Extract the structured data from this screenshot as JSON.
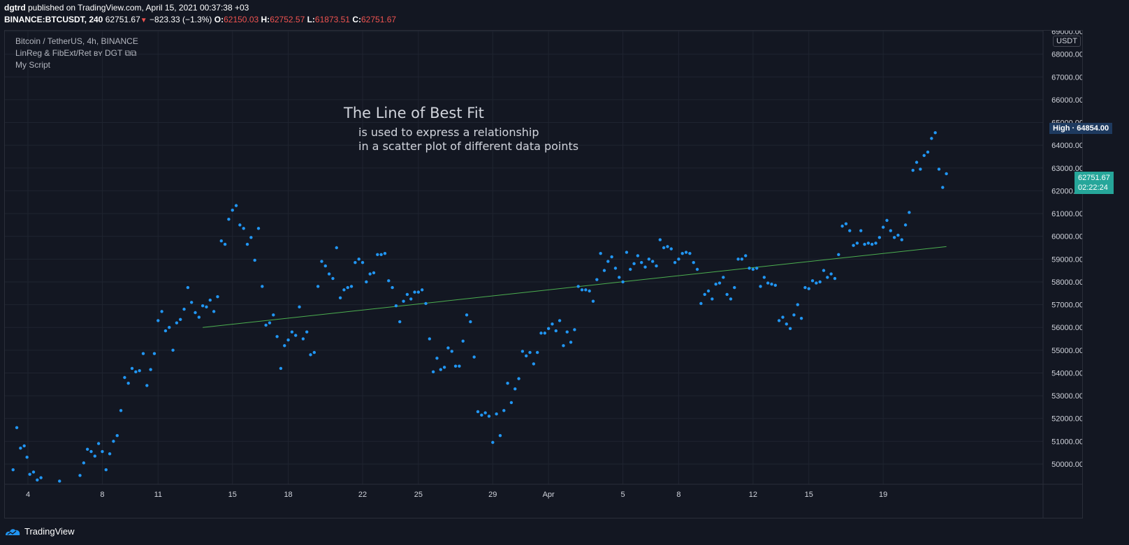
{
  "header": {
    "user": "dgtrd",
    "published": "published on TradingView.com, April 15, 2021 00:37:38 +03",
    "symbol": "BINANCE:BTCUSDT, 240",
    "last": "62751.67",
    "change": "−823.33 (−1.3%)",
    "o_label": "O:",
    "o_value": "62150.03",
    "h_label": "H:",
    "h_value": "62752.57",
    "l_label": "L:",
    "l_value": "61873.51",
    "c_label": "C:",
    "c_value": "62751.67"
  },
  "legend": {
    "title": "Bitcoin / TetherUS, 4h, BINANCE",
    "indicator": "LinReg & FibExt/Ret ʙʏ DGT ⧉⧉",
    "script": "My Script"
  },
  "annotation": {
    "title": "The Line of Best Fit",
    "line1": "is used to express a relationship",
    "line2": "in a scatter plot of different data points"
  },
  "price_scale": {
    "currency": "USDT",
    "labels": [
      "69000.00",
      "68000.00",
      "67000.00",
      "66000.00",
      "65000.00",
      "64000.00",
      "63000.00",
      "62000.00",
      "61000.00",
      "60000.00",
      "59000.00",
      "58000.00",
      "57000.00",
      "56000.00",
      "55000.00",
      "54000.00",
      "53000.00",
      "52000.00",
      "51000.00",
      "50000.00"
    ],
    "high_label": "High",
    "high_value": "64854.00",
    "last_value": "62751.67",
    "countdown": "02:22:24"
  },
  "time_scale": {
    "labels": [
      "4",
      "8",
      "11",
      "15",
      "18",
      "22",
      "25",
      "29",
      "Apr",
      "5",
      "8",
      "12",
      "15",
      "19"
    ]
  },
  "footer": {
    "brand": "TradingView"
  },
  "colors": {
    "background": "#131722",
    "points": "#2196f3",
    "line": "#4caf50",
    "grid": "#1f2430",
    "last_badge": "#26a69a",
    "high_badge": "#1e3a5f",
    "down": "#ef5350"
  },
  "chart_data": {
    "type": "scatter",
    "title": "Bitcoin / TetherUS, 4h, BINANCE",
    "xlabel": "",
    "ylabel": "USDT",
    "x_unit": "day index (4 = March 4, 29 = March 29, Apr 1 = 32)",
    "ylim": [
      48600,
      69000
    ],
    "grid": true,
    "series": [
      {
        "name": "Bitcoin / TetherUS, 4h, BINANCE",
        "points": [
          [
            3.2,
            49750
          ],
          [
            3.4,
            51600
          ],
          [
            3.6,
            50700
          ],
          [
            3.8,
            50800
          ],
          [
            3.95,
            50300
          ],
          [
            4.1,
            49550
          ],
          [
            4.3,
            49650
          ],
          [
            4.5,
            49300
          ],
          [
            4.7,
            49400
          ],
          [
            5.7,
            49250
          ],
          [
            6.8,
            49500
          ],
          [
            7.0,
            50050
          ],
          [
            7.2,
            50650
          ],
          [
            7.4,
            50550
          ],
          [
            7.6,
            50350
          ],
          [
            7.8,
            50900
          ],
          [
            8.0,
            50550
          ],
          [
            8.2,
            49750
          ],
          [
            8.4,
            50450
          ],
          [
            8.6,
            51000
          ],
          [
            8.8,
            51250
          ],
          [
            9.0,
            52350
          ],
          [
            9.2,
            53800
          ],
          [
            9.4,
            53550
          ],
          [
            9.6,
            54200
          ],
          [
            9.8,
            54050
          ],
          [
            10.0,
            54100
          ],
          [
            10.2,
            54850
          ],
          [
            10.4,
            53450
          ],
          [
            10.6,
            54150
          ],
          [
            10.8,
            54850
          ],
          [
            11.0,
            56300
          ],
          [
            11.2,
            56700
          ],
          [
            11.4,
            55850
          ],
          [
            11.6,
            56000
          ],
          [
            11.8,
            55000
          ],
          [
            12.0,
            56200
          ],
          [
            12.2,
            56350
          ],
          [
            12.4,
            56800
          ],
          [
            12.6,
            57750
          ],
          [
            12.8,
            57100
          ],
          [
            13.0,
            56650
          ],
          [
            13.2,
            56450
          ],
          [
            13.4,
            56950
          ],
          [
            13.6,
            56900
          ],
          [
            13.8,
            57200
          ],
          [
            14.0,
            56700
          ],
          [
            14.2,
            57350
          ],
          [
            14.4,
            59800
          ],
          [
            14.6,
            59650
          ],
          [
            14.8,
            60750
          ],
          [
            15.0,
            61150
          ],
          [
            15.2,
            61350
          ],
          [
            15.4,
            60500
          ],
          [
            15.6,
            60350
          ],
          [
            15.8,
            59650
          ],
          [
            16.0,
            59950
          ],
          [
            16.2,
            58950
          ],
          [
            16.4,
            60350
          ],
          [
            16.6,
            57800
          ],
          [
            16.8,
            56100
          ],
          [
            17.0,
            56200
          ],
          [
            17.2,
            56550
          ],
          [
            17.4,
            55600
          ],
          [
            17.6,
            54200
          ],
          [
            17.8,
            55200
          ],
          [
            18.0,
            55450
          ],
          [
            18.2,
            55800
          ],
          [
            18.4,
            55650
          ],
          [
            18.6,
            56900
          ],
          [
            18.8,
            55500
          ],
          [
            19.0,
            55800
          ],
          [
            19.2,
            54800
          ],
          [
            19.4,
            54900
          ],
          [
            19.6,
            57800
          ],
          [
            19.8,
            58900
          ],
          [
            20.0,
            58700
          ],
          [
            20.2,
            58350
          ],
          [
            20.4,
            58150
          ],
          [
            20.6,
            59500
          ],
          [
            20.8,
            57300
          ],
          [
            21.0,
            57650
          ],
          [
            21.2,
            57750
          ],
          [
            21.4,
            57800
          ],
          [
            21.6,
            58850
          ],
          [
            21.8,
            59000
          ],
          [
            22.0,
            58850
          ],
          [
            22.2,
            58000
          ],
          [
            22.4,
            58350
          ],
          [
            22.6,
            58400
          ],
          [
            22.8,
            59200
          ],
          [
            23.0,
            59200
          ],
          [
            23.2,
            59250
          ],
          [
            23.4,
            58050
          ],
          [
            23.6,
            57750
          ],
          [
            23.8,
            56950
          ],
          [
            24.0,
            56250
          ],
          [
            24.2,
            57150
          ],
          [
            24.4,
            57450
          ],
          [
            24.6,
            57250
          ],
          [
            24.8,
            57550
          ],
          [
            25.0,
            57550
          ],
          [
            25.2,
            57650
          ],
          [
            25.4,
            57050
          ],
          [
            25.6,
            55500
          ],
          [
            25.8,
            54050
          ],
          [
            26.0,
            54650
          ],
          [
            26.2,
            54150
          ],
          [
            26.4,
            54250
          ],
          [
            26.6,
            55100
          ],
          [
            26.8,
            54950
          ],
          [
            27.0,
            54300
          ],
          [
            27.2,
            54300
          ],
          [
            27.4,
            55400
          ],
          [
            27.6,
            56550
          ],
          [
            27.8,
            56250
          ],
          [
            28.0,
            54700
          ],
          [
            28.2,
            52300
          ],
          [
            28.4,
            52150
          ],
          [
            28.6,
            52250
          ],
          [
            28.8,
            52100
          ],
          [
            29.0,
            50950
          ],
          [
            29.2,
            52200
          ],
          [
            29.4,
            51250
          ],
          [
            29.6,
            52350
          ],
          [
            29.8,
            53550
          ],
          [
            30.0,
            52700
          ],
          [
            30.2,
            53300
          ],
          [
            30.4,
            53750
          ],
          [
            30.6,
            54950
          ],
          [
            30.8,
            54750
          ],
          [
            31.0,
            54900
          ],
          [
            31.2,
            54400
          ],
          [
            31.4,
            54900
          ],
          [
            31.6,
            55750
          ],
          [
            31.8,
            55750
          ],
          [
            32.0,
            55950
          ],
          [
            32.2,
            56150
          ],
          [
            32.4,
            55850
          ],
          [
            32.6,
            56300
          ],
          [
            32.8,
            55200
          ],
          [
            33.0,
            55800
          ],
          [
            33.2,
            55350
          ],
          [
            33.4,
            55900
          ],
          [
            33.6,
            57800
          ],
          [
            33.8,
            57650
          ],
          [
            34.0,
            57650
          ],
          [
            34.2,
            57600
          ],
          [
            34.4,
            57150
          ],
          [
            34.6,
            58100
          ],
          [
            34.8,
            59250
          ],
          [
            35.0,
            58500
          ],
          [
            35.2,
            58900
          ],
          [
            35.4,
            59100
          ],
          [
            35.6,
            58600
          ],
          [
            35.8,
            58200
          ],
          [
            36.0,
            58000
          ],
          [
            36.2,
            59300
          ],
          [
            36.4,
            58550
          ],
          [
            36.6,
            58800
          ],
          [
            36.8,
            59150
          ],
          [
            37.0,
            58850
          ],
          [
            37.2,
            58650
          ],
          [
            37.4,
            59000
          ],
          [
            37.6,
            58900
          ],
          [
            37.8,
            58700
          ],
          [
            38.0,
            59850
          ],
          [
            38.2,
            59500
          ],
          [
            38.4,
            59550
          ],
          [
            38.6,
            59450
          ],
          [
            38.8,
            58850
          ],
          [
            39.0,
            59000
          ],
          [
            39.2,
            59250
          ],
          [
            39.4,
            59300
          ],
          [
            39.6,
            59250
          ],
          [
            39.8,
            58850
          ],
          [
            40.0,
            58550
          ],
          [
            40.2,
            57050
          ],
          [
            40.4,
            57450
          ],
          [
            40.6,
            57600
          ],
          [
            40.8,
            57250
          ],
          [
            41.0,
            57900
          ],
          [
            41.2,
            57950
          ],
          [
            41.4,
            58200
          ],
          [
            41.6,
            57450
          ],
          [
            41.8,
            57250
          ],
          [
            42.0,
            57750
          ],
          [
            42.2,
            59000
          ],
          [
            42.4,
            59000
          ],
          [
            42.6,
            59150
          ],
          [
            42.8,
            58600
          ],
          [
            43.0,
            58550
          ],
          [
            43.2,
            58600
          ],
          [
            43.4,
            57800
          ],
          [
            43.6,
            58200
          ],
          [
            43.8,
            57950
          ],
          [
            44.0,
            57900
          ],
          [
            44.2,
            57850
          ],
          [
            44.4,
            56300
          ],
          [
            44.6,
            56450
          ],
          [
            44.8,
            56150
          ],
          [
            45.0,
            55950
          ],
          [
            45.2,
            56550
          ],
          [
            45.4,
            57000
          ],
          [
            45.6,
            56400
          ],
          [
            45.8,
            57750
          ],
          [
            46.0,
            57700
          ],
          [
            46.2,
            58050
          ],
          [
            46.4,
            57950
          ],
          [
            46.6,
            58000
          ],
          [
            46.8,
            58500
          ],
          [
            47.0,
            58200
          ],
          [
            47.2,
            58350
          ],
          [
            47.4,
            58150
          ],
          [
            47.6,
            59200
          ],
          [
            47.8,
            60450
          ],
          [
            48.0,
            60550
          ],
          [
            48.2,
            60250
          ],
          [
            48.4,
            59600
          ],
          [
            48.6,
            59700
          ],
          [
            48.8,
            60250
          ],
          [
            49.0,
            59650
          ],
          [
            49.2,
            59700
          ],
          [
            49.4,
            59650
          ],
          [
            49.6,
            59700
          ],
          [
            49.8,
            59950
          ],
          [
            50.0,
            60400
          ],
          [
            50.2,
            60700
          ],
          [
            50.4,
            60250
          ],
          [
            50.6,
            59950
          ],
          [
            50.8,
            60050
          ],
          [
            51.0,
            59850
          ],
          [
            51.2,
            60500
          ],
          [
            51.4,
            61050
          ],
          [
            51.6,
            62900
          ],
          [
            51.8,
            63250
          ],
          [
            52.0,
            62950
          ],
          [
            52.2,
            63550
          ],
          [
            52.4,
            63700
          ],
          [
            52.6,
            64300
          ],
          [
            52.8,
            64550
          ],
          [
            53.0,
            62950
          ],
          [
            53.2,
            62150
          ],
          [
            53.4,
            62750
          ]
        ]
      }
    ],
    "regression_line": {
      "name": "",
      "x": [
        13.4,
        53.4
      ],
      "y": [
        56000,
        59550
      ]
    }
  }
}
